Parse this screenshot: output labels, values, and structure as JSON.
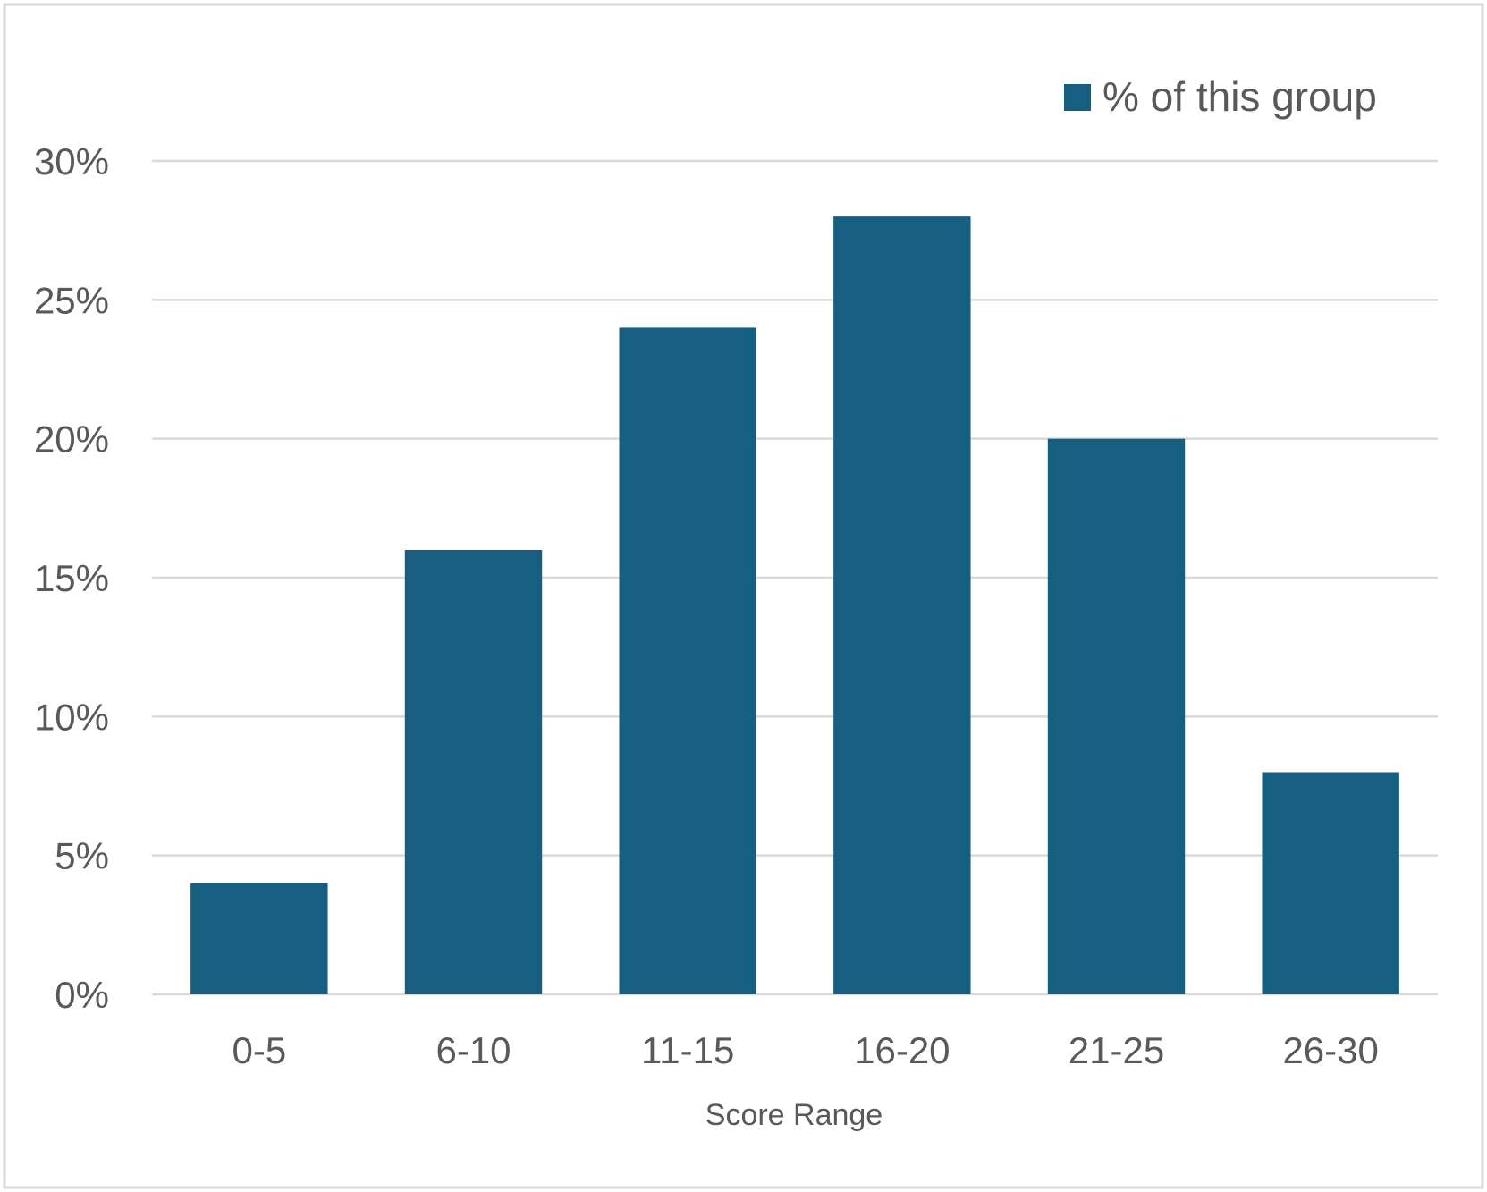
{
  "chart_data": {
    "type": "bar",
    "categories": [
      "0-5",
      "6-10",
      "11-15",
      "16-20",
      "21-25",
      "26-30"
    ],
    "series": [
      {
        "name": "% of this group",
        "values": [
          4,
          16,
          24,
          28,
          20,
          8
        ],
        "color": "#175F81"
      }
    ],
    "xlabel": "Score Range",
    "ylabel": "",
    "ylim": [
      0,
      30
    ],
    "y_ticks": [
      "0%",
      "5%",
      "10%",
      "15%",
      "20%",
      "25%",
      "30%"
    ],
    "y_tick_values": [
      0,
      5,
      10,
      15,
      20,
      25,
      30
    ],
    "grid": true,
    "legend_position": "top-right",
    "colors": {
      "bar": "#175F81",
      "grid": "#D9D9D9",
      "text": "#595959",
      "frame": "#D9D9D9"
    }
  }
}
